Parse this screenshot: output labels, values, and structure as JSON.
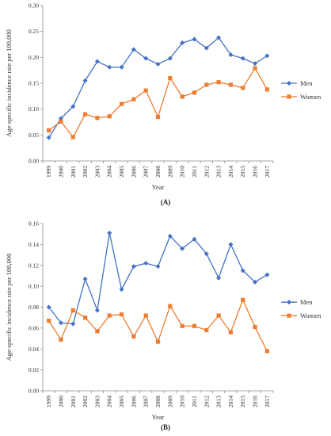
{
  "chart_data": [
    {
      "type": "line",
      "panel_label": "(A)",
      "xlabel": "Year",
      "ylabel": "Age-specific incidence rate per 100,000",
      "categories": [
        "1999",
        "2000",
        "2001",
        "2002",
        "2003",
        "2004",
        "2005",
        "2006",
        "2007",
        "2008",
        "2009",
        "2010",
        "2011",
        "2012",
        "2013",
        "2014",
        "2015",
        "2016",
        "2017"
      ],
      "ylim": [
        0,
        0.3
      ],
      "yticks": [
        "0.00",
        "0.05",
        "0.10",
        "0.15",
        "0.20",
        "0.25",
        "0.30"
      ],
      "grid": false,
      "legend_position": "right",
      "series": [
        {
          "name": "Men",
          "color": "#4472C4",
          "marker": "diamond",
          "values": [
            0.045,
            0.082,
            0.105,
            0.155,
            0.192,
            0.181,
            0.181,
            0.215,
            0.198,
            0.187,
            0.198,
            0.228,
            0.235,
            0.218,
            0.238,
            0.205,
            0.198,
            0.188,
            0.203
          ]
        },
        {
          "name": "Women",
          "color": "#ED7D31",
          "marker": "square",
          "values": [
            0.059,
            0.076,
            0.046,
            0.09,
            0.083,
            0.086,
            0.11,
            0.119,
            0.136,
            0.085,
            0.16,
            0.124,
            0.132,
            0.147,
            0.152,
            0.147,
            0.141,
            0.179,
            0.138
          ]
        }
      ]
    },
    {
      "type": "line",
      "panel_label": "(B)",
      "xlabel": "Year",
      "ylabel": "Age-specific incidence rate per 100,000",
      "categories": [
        "1999",
        "2000",
        "2001",
        "2002",
        "2003",
        "2004",
        "2005",
        "2006",
        "2007",
        "2008",
        "2009",
        "2010",
        "2011",
        "2012",
        "2013",
        "2014",
        "2015",
        "2016",
        "2017"
      ],
      "ylim": [
        0,
        0.16
      ],
      "yticks": [
        "0.00",
        "0.02",
        "0.04",
        "0.06",
        "0.08",
        "0.10",
        "0.12",
        "0.14",
        "0.16"
      ],
      "grid": false,
      "legend_position": "right",
      "series": [
        {
          "name": "Men",
          "color": "#4472C4",
          "marker": "diamond",
          "values": [
            0.08,
            0.065,
            0.064,
            0.107,
            0.077,
            0.151,
            0.097,
            0.119,
            0.122,
            0.119,
            0.148,
            0.136,
            0.145,
            0.131,
            0.108,
            0.14,
            0.115,
            0.104,
            0.111
          ]
        },
        {
          "name": "Women",
          "color": "#ED7D31",
          "marker": "square",
          "values": [
            0.067,
            0.049,
            0.077,
            0.07,
            0.057,
            0.072,
            0.073,
            0.052,
            0.072,
            0.047,
            0.081,
            0.062,
            0.062,
            0.058,
            0.072,
            0.056,
            0.087,
            0.061,
            0.038
          ]
        }
      ]
    }
  ]
}
